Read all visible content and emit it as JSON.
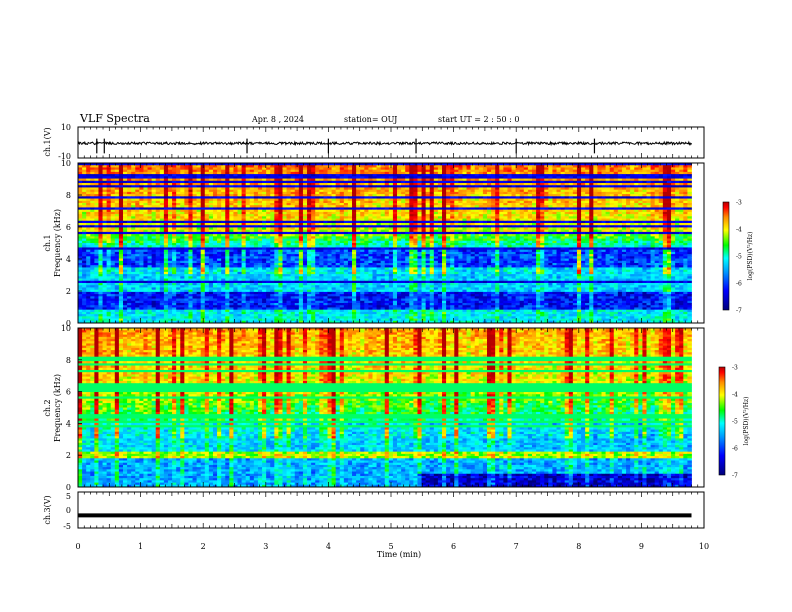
{
  "header": {
    "title": "VLF Spectra",
    "date": "Apr. 8 , 2024",
    "station": "station= OUJ",
    "start": "start UT =  2 : 50 : 0"
  },
  "chart_data": [
    {
      "type": "line",
      "panel": "ch1-waveform",
      "ylabel": "ch.1(V)",
      "ylim": [
        -10,
        10
      ],
      "yticks": [
        "10",
        "-10"
      ],
      "baseline": -0.5
    },
    {
      "type": "heatmap",
      "panel": "ch1-spectrogram",
      "ylabel": [
        "ch.1",
        "Frequency (kHz)"
      ],
      "ylim": [
        0,
        10
      ],
      "yticks": [
        "0",
        "2",
        "4",
        "6",
        "8",
        "10"
      ],
      "colorbar": {
        "label": "log(PSD)(V²/Hz)",
        "range": [
          -7,
          -3
        ],
        "ticks": [
          "-3",
          "-4",
          "-5",
          "-6",
          "-7"
        ]
      }
    },
    {
      "type": "heatmap",
      "panel": "ch2-spectrogram",
      "ylabel": [
        "ch.2",
        "Frequency (kHz)"
      ],
      "ylim": [
        0,
        10
      ],
      "yticks": [
        "0",
        "2",
        "4",
        "6",
        "8",
        "10"
      ],
      "colorbar": {
        "label": "log(PSD)(V²/Hz)",
        "range": [
          -7,
          -3
        ],
        "ticks": [
          "-3",
          "-4",
          "-5",
          "-6",
          "-7"
        ]
      }
    },
    {
      "type": "line",
      "panel": "ch3-waveform",
      "ylabel": "ch.3(V)",
      "ylim": [
        -5,
        5
      ],
      "yticks": [
        "5",
        "0",
        "-5"
      ],
      "baseline": -1.5
    }
  ],
  "xaxis": {
    "label": "Time (min)",
    "xlim": [
      0,
      10
    ],
    "ticks": [
      "0",
      "1",
      "2",
      "3",
      "4",
      "5",
      "6",
      "7",
      "8",
      "9",
      "10"
    ],
    "data_end": 9.8
  },
  "colors": {
    "scale": [
      "#00007a",
      "#0000ff",
      "#0096ff",
      "#00ffff",
      "#00ff00",
      "#ffff00",
      "#ff8c00",
      "#ff0000",
      "#b40000"
    ]
  }
}
